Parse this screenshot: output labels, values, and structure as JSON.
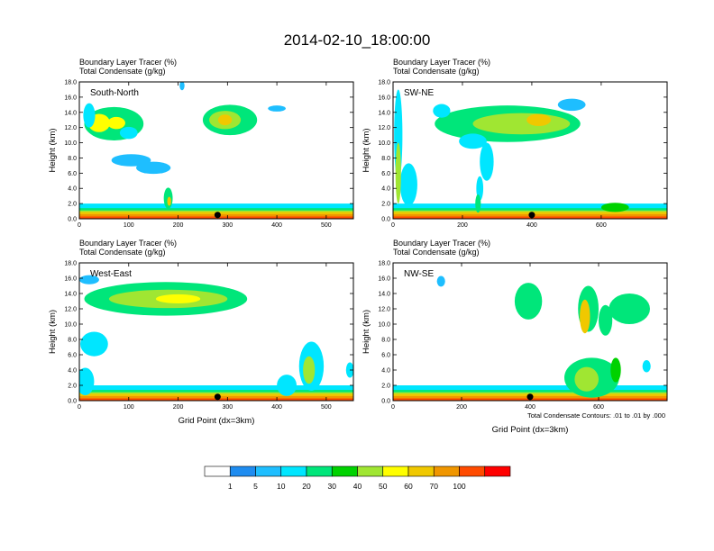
{
  "title": "2014-02-10_18:00:00",
  "chart_data": {
    "type": "heatmap",
    "levels": [
      1,
      5,
      10,
      20,
      30,
      40,
      50,
      60,
      70,
      100
    ],
    "colors": [
      "#ffffff",
      "#1e8cf0",
      "#1ebeff",
      "#00e6ff",
      "#00e67a",
      "#00d200",
      "#a0e632",
      "#ffff00",
      "#f0c800",
      "#f09600",
      "#ff4b00",
      "#ff0000"
    ],
    "contour_note": "Total Condensate Contours: .01 to .01 by .000",
    "panels": [
      {
        "id": "south-north",
        "label": "South-North",
        "subtitle_1": "Boundary Layer Tracer    (%)",
        "subtitle_2": "Total Condensate   (g/kg)",
        "ylabel": "Height (km)",
        "xlabel": "",
        "ylim": [
          0,
          18
        ],
        "xlim": [
          0,
          555
        ],
        "yticks": [
          "0.0",
          "2.0",
          "4.0",
          "6.0",
          "8.0",
          "10.0",
          "12.0",
          "14.0",
          "16.0",
          "18.0"
        ],
        "xticks": [
          0,
          100,
          200,
          300,
          400,
          500
        ],
        "marker_x": 280,
        "blobs": [
          {
            "x": 70,
            "y": 12.5,
            "rx": 60,
            "ry": 2.2,
            "v": 20
          },
          {
            "x": 40,
            "y": 12.6,
            "rx": 22,
            "ry": 1.2,
            "v": 50
          },
          {
            "x": 75,
            "y": 12.6,
            "rx": 18,
            "ry": 0.8,
            "v": 50
          },
          {
            "x": 20,
            "y": 13.6,
            "rx": 12,
            "ry": 1.6,
            "v": 10
          },
          {
            "x": 100,
            "y": 11.3,
            "rx": 18,
            "ry": 0.8,
            "v": 10
          },
          {
            "x": 105,
            "y": 7.7,
            "rx": 40,
            "ry": 0.8,
            "v": 5
          },
          {
            "x": 150,
            "y": 6.7,
            "rx": 35,
            "ry": 0.8,
            "v": 5
          },
          {
            "x": 305,
            "y": 13.0,
            "rx": 55,
            "ry": 2.0,
            "v": 20
          },
          {
            "x": 295,
            "y": 13.0,
            "rx": 32,
            "ry": 1.2,
            "v": 40
          },
          {
            "x": 295,
            "y": 13.0,
            "rx": 14,
            "ry": 0.7,
            "v": 60
          },
          {
            "x": 400,
            "y": 14.5,
            "rx": 18,
            "ry": 0.4,
            "v": 5
          },
          {
            "x": 208,
            "y": 17.5,
            "rx": 5,
            "ry": 0.6,
            "v": 5
          },
          {
            "x": 180,
            "y": 2.7,
            "rx": 9,
            "ry": 1.4,
            "v": 20
          },
          {
            "x": 182,
            "y": 2.3,
            "rx": 4,
            "ry": 0.6,
            "v": 60
          }
        ]
      },
      {
        "id": "sw-ne",
        "label": "SW-NE",
        "subtitle_1": "Boundary Layer Tracer    (%)",
        "subtitle_2": "Total Condensate   (g/kg)",
        "ylabel": "Height (km)",
        "xlabel": "",
        "ylim": [
          0,
          18
        ],
        "xlim": [
          0,
          790
        ],
        "yticks": [
          "0.0",
          "2.0",
          "4.0",
          "6.0",
          "8.0",
          "10.0",
          "12.0",
          "14.0",
          "16.0",
          "18.0"
        ],
        "xticks": [
          0,
          200,
          400,
          600
        ],
        "marker_x": 400,
        "blobs": [
          {
            "x": 330,
            "y": 12.5,
            "rx": 210,
            "ry": 2.4,
            "v": 20
          },
          {
            "x": 370,
            "y": 12.5,
            "rx": 140,
            "ry": 1.4,
            "v": 40
          },
          {
            "x": 420,
            "y": 13.0,
            "rx": 35,
            "ry": 0.8,
            "v": 60
          },
          {
            "x": 140,
            "y": 14.2,
            "rx": 25,
            "ry": 0.9,
            "v": 10
          },
          {
            "x": 230,
            "y": 10.2,
            "rx": 40,
            "ry": 1.0,
            "v": 10
          },
          {
            "x": 15,
            "y": 11.0,
            "rx": 12,
            "ry": 6.0,
            "v": 10
          },
          {
            "x": 45,
            "y": 4.5,
            "rx": 25,
            "ry": 2.8,
            "v": 10
          },
          {
            "x": 15,
            "y": 6.0,
            "rx": 8,
            "ry": 4.0,
            "v": 40
          },
          {
            "x": 270,
            "y": 7.5,
            "rx": 20,
            "ry": 2.5,
            "v": 10
          },
          {
            "x": 250,
            "y": 4.0,
            "rx": 10,
            "ry": 1.6,
            "v": 10
          },
          {
            "x": 245,
            "y": 2.0,
            "rx": 8,
            "ry": 1.2,
            "v": 20
          },
          {
            "x": 515,
            "y": 15.0,
            "rx": 40,
            "ry": 0.8,
            "v": 5
          },
          {
            "x": 640,
            "y": 1.5,
            "rx": 40,
            "ry": 0.6,
            "v": 30
          }
        ]
      },
      {
        "id": "west-east",
        "label": "West-East",
        "subtitle_1": "Boundary Layer Tracer    (%)",
        "subtitle_2": "Total Condensate   (g/kg)",
        "ylabel": "Height (km)",
        "xlabel": "Grid Point (dx=3km)",
        "ylim": [
          0,
          18
        ],
        "xlim": [
          0,
          555
        ],
        "yticks": [
          "0.0",
          "2.0",
          "4.0",
          "6.0",
          "8.0",
          "10.0",
          "12.0",
          "14.0",
          "16.0",
          "18.0"
        ],
        "xticks": [
          0,
          100,
          200,
          300,
          400,
          500
        ],
        "marker_x": 280,
        "blobs": [
          {
            "x": 175,
            "y": 13.3,
            "rx": 165,
            "ry": 2.2,
            "v": 20
          },
          {
            "x": 180,
            "y": 13.3,
            "rx": 120,
            "ry": 1.2,
            "v": 40
          },
          {
            "x": 200,
            "y": 13.3,
            "rx": 45,
            "ry": 0.6,
            "v": 50
          },
          {
            "x": 20,
            "y": 15.8,
            "rx": 20,
            "ry": 0.6,
            "v": 5
          },
          {
            "x": 30,
            "y": 7.4,
            "rx": 28,
            "ry": 1.6,
            "v": 10
          },
          {
            "x": 12,
            "y": 2.5,
            "rx": 18,
            "ry": 1.8,
            "v": 10
          },
          {
            "x": 470,
            "y": 4.5,
            "rx": 25,
            "ry": 3.2,
            "v": 10
          },
          {
            "x": 465,
            "y": 4.0,
            "rx": 12,
            "ry": 1.8,
            "v": 40
          },
          {
            "x": 420,
            "y": 2.0,
            "rx": 20,
            "ry": 1.4,
            "v": 10
          },
          {
            "x": 548,
            "y": 4.0,
            "rx": 8,
            "ry": 1.0,
            "v": 10
          }
        ]
      },
      {
        "id": "nw-se",
        "label": "NW-SE",
        "subtitle_1": "Boundary Layer Tracer    (%)",
        "subtitle_2": "Total Condensate   (g/kg)",
        "ylabel": "Height (km)",
        "xlabel": "Grid Point (dx=3km)",
        "ylim": [
          0,
          18
        ],
        "xlim": [
          0,
          800
        ],
        "yticks": [
          "0.0",
          "2.0",
          "4.0",
          "6.0",
          "8.0",
          "10.0",
          "12.0",
          "14.0",
          "16.0",
          "18.0"
        ],
        "xticks": [
          0,
          200,
          400,
          600
        ],
        "marker_x": 400,
        "blobs": [
          {
            "x": 395,
            "y": 13.0,
            "rx": 40,
            "ry": 2.4,
            "v": 20
          },
          {
            "x": 570,
            "y": 12.0,
            "rx": 30,
            "ry": 3.0,
            "v": 20
          },
          {
            "x": 560,
            "y": 11.0,
            "rx": 15,
            "ry": 2.2,
            "v": 60
          },
          {
            "x": 690,
            "y": 12.0,
            "rx": 60,
            "ry": 2.0,
            "v": 20
          },
          {
            "x": 620,
            "y": 10.5,
            "rx": 20,
            "ry": 2.0,
            "v": 20
          },
          {
            "x": 140,
            "y": 15.6,
            "rx": 12,
            "ry": 0.7,
            "v": 5
          },
          {
            "x": 580,
            "y": 3.0,
            "rx": 80,
            "ry": 2.6,
            "v": 20
          },
          {
            "x": 565,
            "y": 2.8,
            "rx": 35,
            "ry": 1.6,
            "v": 40
          },
          {
            "x": 650,
            "y": 4.0,
            "rx": 15,
            "ry": 1.6,
            "v": 30
          },
          {
            "x": 740,
            "y": 4.5,
            "rx": 12,
            "ry": 0.8,
            "v": 10
          }
        ]
      }
    ]
  }
}
